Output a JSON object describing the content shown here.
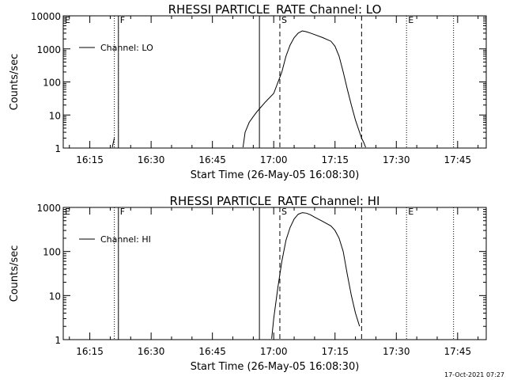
{
  "timestamp": "17-Oct-2021 07:27",
  "colors": {
    "background": "#ffffff",
    "foreground": "#000000"
  },
  "chart_data": [
    {
      "type": "line",
      "title": "RHESSI PARTICLE_RATE Channel: LO",
      "xlabel": "Start Time (26-May-05 16:08:30)",
      "ylabel": "Counts/sec",
      "y_scale": "log",
      "ylim": [
        1,
        10000
      ],
      "y_ticks": [
        1,
        10,
        100,
        1000,
        10000
      ],
      "y_tick_labels": [
        "1",
        "10",
        "100",
        "1000",
        "10000"
      ],
      "xlim": [
        "16:08:30",
        "17:52:00"
      ],
      "x_ticks": [
        "16:15",
        "16:30",
        "16:45",
        "17:00",
        "17:15",
        "17:30",
        "17:45"
      ],
      "legend": {
        "position": "top-left",
        "entries": [
          "Channel: LO"
        ]
      },
      "markers": [
        {
          "label": "E",
          "time": "16:08:30",
          "style": "dotted"
        },
        {
          "label": "",
          "time": "16:21:00",
          "style": "dotted"
        },
        {
          "label": "F",
          "time": "16:22:00",
          "style": "solid"
        },
        {
          "label": "",
          "time": "16:56:30",
          "style": "solid"
        },
        {
          "label": "S",
          "time": "17:01:30",
          "style": "dashed"
        },
        {
          "label": "",
          "time": "17:21:30",
          "style": "dashed"
        },
        {
          "label": "E",
          "time": "17:32:30",
          "style": "dotted"
        },
        {
          "label": "",
          "time": "17:44:00",
          "style": "dotted"
        }
      ],
      "series": [
        {
          "name": "Channel: LO",
          "segments": [
            {
              "x": [
                "16:20:30",
                "16:21:00"
              ],
              "y": [
                1.05,
                2
              ]
            },
            {
              "x": [
                "16:52:30",
                "16:53:00",
                "16:54:00",
                "16:55:00",
                "16:56:00",
                "16:58:00",
                "17:00:00",
                "17:02:00",
                "17:03:00",
                "17:04:00",
                "17:05:00",
                "17:06:00",
                "17:07:00",
                "17:08:00",
                "17:09:00",
                "17:10:00",
                "17:12:00",
                "17:14:00",
                "17:15:00",
                "17:16:00",
                "17:17:00",
                "17:18:00",
                "17:19:00",
                "17:20:00",
                "17:21:00",
                "17:21:30",
                "17:22:00",
                "17:22:30"
              ],
              "y": [
                1.05,
                3,
                6,
                9,
                13,
                25,
                45,
                200,
                600,
                1300,
                2200,
                3000,
                3500,
                3300,
                3000,
                2700,
                2200,
                1700,
                1200,
                600,
                200,
                60,
                20,
                7,
                3,
                2,
                1.5,
                1.05
              ]
            }
          ]
        }
      ]
    },
    {
      "type": "line",
      "title": "RHESSI PARTICLE_RATE Channel: HI",
      "xlabel": "Start Time (26-May-05 16:08:30)",
      "ylabel": "Counts/sec",
      "y_scale": "log",
      "ylim": [
        1,
        1000
      ],
      "y_ticks": [
        1,
        10,
        100,
        1000
      ],
      "y_tick_labels": [
        "1",
        "10",
        "100",
        "1000"
      ],
      "xlim": [
        "16:08:30",
        "17:52:00"
      ],
      "x_ticks": [
        "16:15",
        "16:30",
        "16:45",
        "17:00",
        "17:15",
        "17:30",
        "17:45"
      ],
      "legend": {
        "position": "top-left",
        "entries": [
          "Channel: HI"
        ]
      },
      "markers": [
        {
          "label": "E",
          "time": "16:08:30",
          "style": "dotted"
        },
        {
          "label": "",
          "time": "16:21:00",
          "style": "dotted"
        },
        {
          "label": "F",
          "time": "16:22:00",
          "style": "solid"
        },
        {
          "label": "",
          "time": "16:56:30",
          "style": "solid"
        },
        {
          "label": "S",
          "time": "17:01:30",
          "style": "dashed"
        },
        {
          "label": "",
          "time": "17:21:30",
          "style": "dashed"
        },
        {
          "label": "E",
          "time": "17:32:30",
          "style": "dotted"
        },
        {
          "label": "",
          "time": "17:44:00",
          "style": "dotted"
        }
      ],
      "series": [
        {
          "name": "Channel: HI",
          "segments": [
            {
              "x": [
                "16:59:30",
                "17:00:00",
                "17:01:00",
                "17:02:00",
                "17:03:00",
                "17:04:00",
                "17:05:00",
                "17:06:00",
                "17:07:00",
                "17:08:00",
                "17:09:00",
                "17:10:00",
                "17:12:00",
                "17:14:00",
                "17:15:00",
                "17:16:00",
                "17:17:00",
                "17:18:00",
                "17:19:00",
                "17:20:00",
                "17:21:00"
              ],
              "y": [
                1.05,
                3,
                15,
                60,
                180,
                350,
                550,
                700,
                760,
                740,
                680,
                600,
                480,
                380,
                300,
                200,
                100,
                30,
                10,
                4,
                2
              ]
            }
          ]
        }
      ]
    }
  ]
}
